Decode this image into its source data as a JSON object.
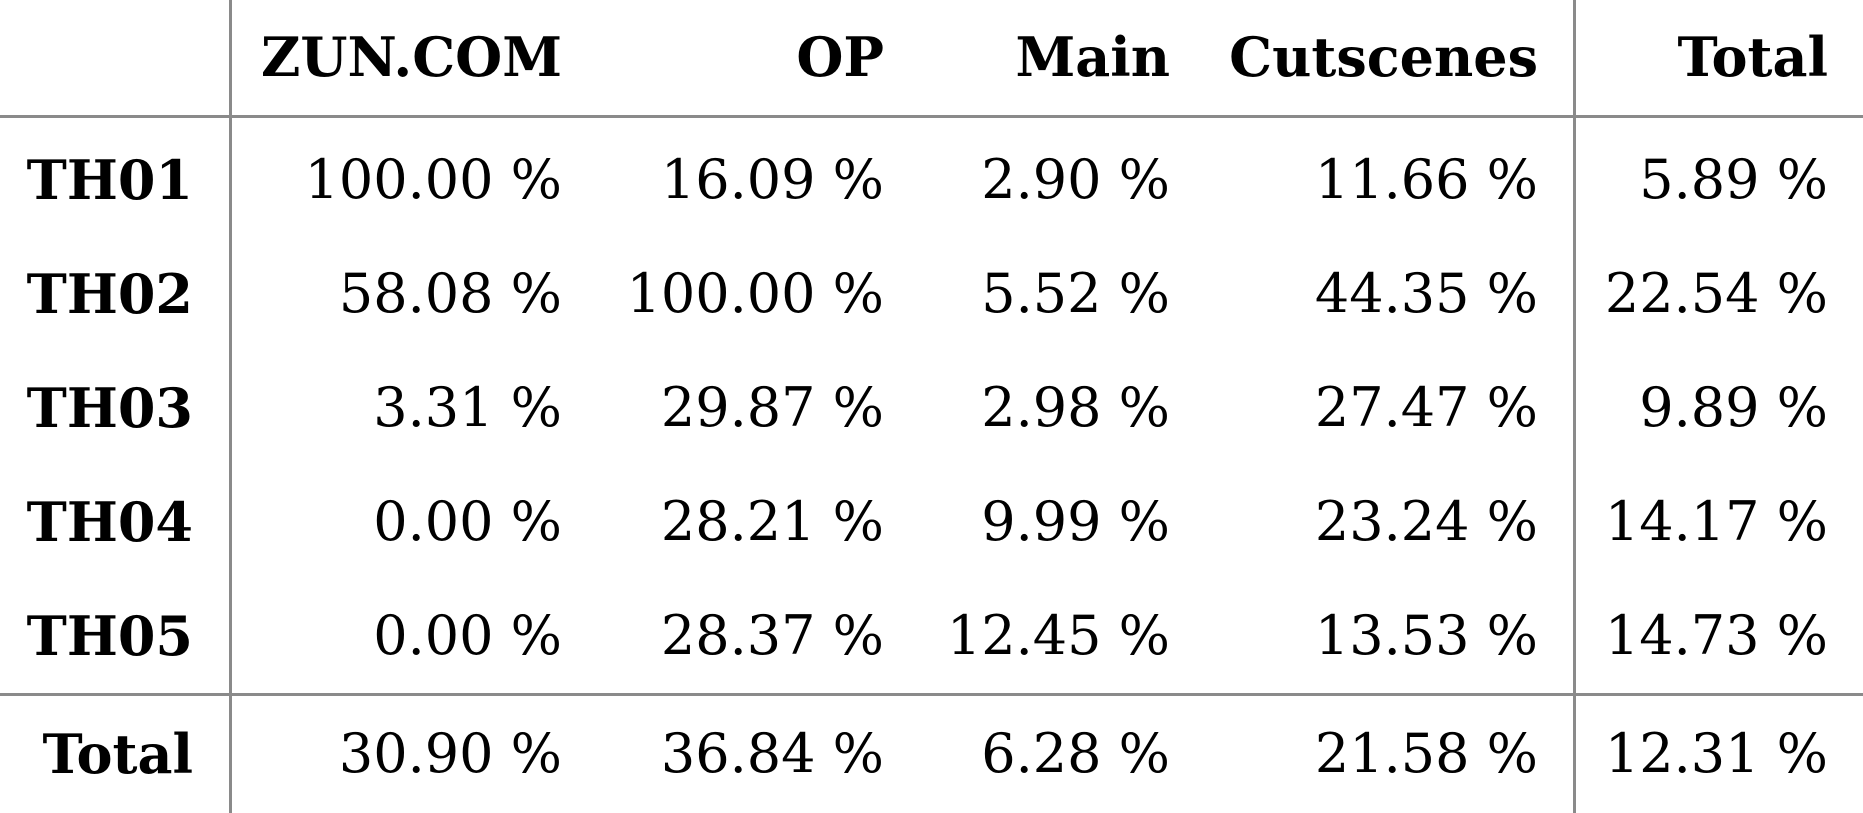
{
  "chart_data": {
    "type": "table",
    "columns": [
      "",
      "ZUN.COM",
      "OP",
      "Main",
      "Cutscenes",
      "Total"
    ],
    "rows": [
      {
        "label": "TH01",
        "values": [
          "100.00 %",
          "16.09 %",
          "2.90 %",
          "11.66 %",
          "5.89 %"
        ]
      },
      {
        "label": "TH02",
        "values": [
          "58.08 %",
          "100.00 %",
          "5.52 %",
          "44.35 %",
          "22.54 %"
        ]
      },
      {
        "label": "TH03",
        "values": [
          "3.31 %",
          "29.87 %",
          "2.98 %",
          "27.47 %",
          "9.89 %"
        ]
      },
      {
        "label": "TH04",
        "values": [
          "0.00 %",
          "28.21 %",
          "9.99 %",
          "23.24 %",
          "14.17 %"
        ]
      },
      {
        "label": "TH05",
        "values": [
          "0.00 %",
          "28.37 %",
          "12.45 %",
          "13.53 %",
          "14.73 %"
        ]
      },
      {
        "label": "Total",
        "values": [
          "30.90 %",
          "36.84 %",
          "6.28 %",
          "21.58 %",
          "12.31 %"
        ]
      }
    ]
  }
}
